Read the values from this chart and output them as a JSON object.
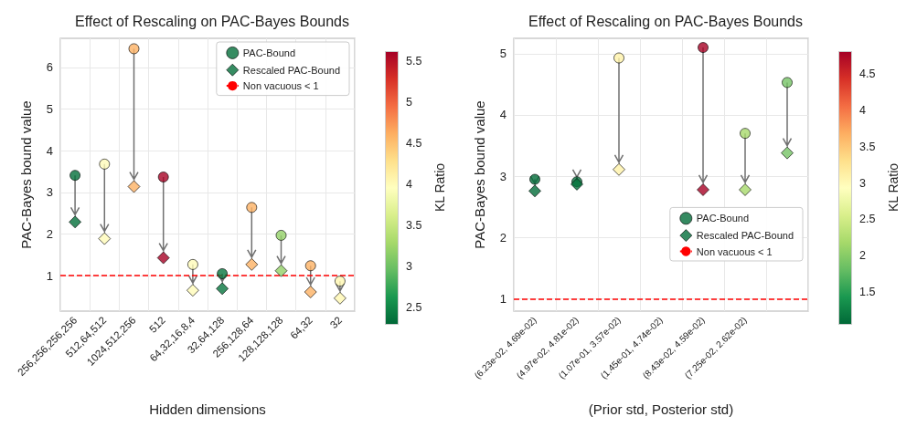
{
  "chart_data": [
    {
      "type": "scatter",
      "title": "Effect of Rescaling on PAC-Bayes Bounds",
      "xlabel": "Hidden dimensions",
      "ylabel": "PAC-Bayes bound value",
      "clabel": "KL Ratio",
      "categories": [
        "256,256,256,256",
        "512,64,512",
        "1024,512,256",
        "512",
        "64,32,16,8,4",
        "32,64,128",
        "256,128,64",
        "128,128,128",
        "64,32",
        "32"
      ],
      "series": [
        {
          "name": "PAC-Bound",
          "marker": "circle",
          "values": [
            3.41,
            3.68,
            6.45,
            3.37,
            1.27,
            1.05,
            2.64,
            1.97,
            1.24,
            0.87
          ],
          "colors": [
            "#046f3b",
            "#fffbb9",
            "#fdb164",
            "#a80326",
            "#fffbb9",
            "#08763f",
            "#fdb164",
            "#93d168",
            "#fdb164",
            "#fff7b1"
          ]
        },
        {
          "name": "Rescaled PAC-Bound",
          "marker": "diamond",
          "values": [
            2.29,
            1.89,
            3.14,
            1.43,
            0.65,
            0.69,
            1.27,
            1.12,
            0.61,
            0.46
          ],
          "colors": [
            "#046f3b",
            "#fffbb9",
            "#fdb164",
            "#a80326",
            "#fffbb9",
            "#08763f",
            "#fdb164",
            "#93d168",
            "#fdb164",
            "#fff7b1"
          ]
        }
      ],
      "ylim": [
        0.15,
        6.7
      ],
      "yticks": [
        1,
        2,
        3,
        4,
        5,
        6
      ],
      "clim": [
        2.3,
        5.62
      ],
      "cticks": [
        2.5,
        3.0,
        3.5,
        4.0,
        4.5,
        5.0,
        5.5
      ],
      "ref_lines": [
        {
          "axis": "y",
          "value": 1,
          "label": "Non vacuous < 1",
          "color": "#ff0000",
          "line_style": "dashed"
        }
      ],
      "grid": true,
      "legend": "top right"
    },
    {
      "type": "scatter",
      "title": "Effect of Rescaling on PAC-Bayes Bounds",
      "xlabel": "(Prior std, Posterior std)",
      "ylabel": "PAC-Bayes bound value",
      "clabel": "KL Ratio",
      "categories": [
        "(6.23e-02, 4.69e-02)",
        "(4.97e-02, 4.81e-02)",
        "(1.07e-01, 3.57e-02)",
        "(1.45e-01, 4.74e-02)",
        "(8.43e-02, 4.59e-02)",
        "(7.25e-02, 2.62e-02)",
        null
      ],
      "series": [
        {
          "name": "PAC-Bound",
          "marker": "circle",
          "values": [
            2.95,
            2.91,
            4.93,
            null,
            5.1,
            3.7,
            4.53
          ],
          "colors": [
            "#036d3a",
            "#06733d",
            "#fff2a9",
            null,
            "#a80226",
            "#a8da6b",
            "#75c365"
          ]
        },
        {
          "name": "Rescaled PAC-Bound",
          "marker": "diamond",
          "values": [
            2.76,
            2.87,
            3.11,
            null,
            2.78,
            2.78,
            3.38
          ],
          "colors": [
            "#036d3a",
            "#06733d",
            "#fff2a9",
            null,
            "#a80226",
            "#a8da6b",
            "#75c365"
          ]
        }
      ],
      "ylim": [
        0.8,
        5.25
      ],
      "yticks": [
        1,
        2,
        3,
        4,
        5
      ],
      "clim": [
        1.06,
        4.82
      ],
      "cticks": [
        1.5,
        2.0,
        2.5,
        3.0,
        3.5,
        4.0,
        4.5
      ],
      "ref_lines": [
        {
          "axis": "y",
          "value": 1,
          "label": "Non vacuous < 1",
          "color": "#ff0000",
          "line_style": "dashed"
        }
      ],
      "grid": true,
      "legend": "bottom right"
    }
  ]
}
